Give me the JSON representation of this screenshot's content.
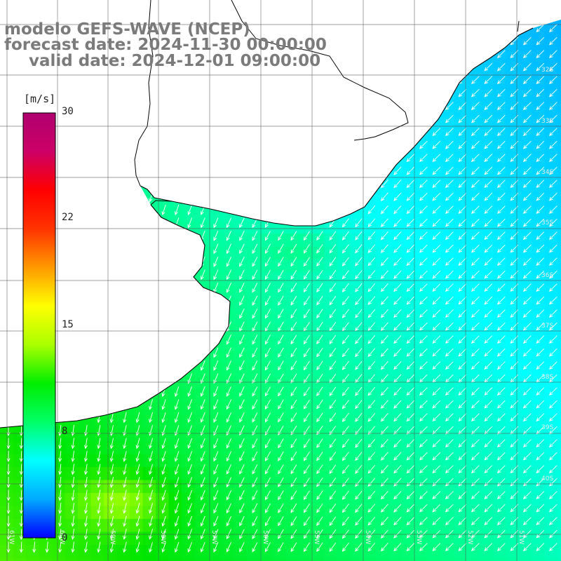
{
  "titles": {
    "model": "modelo GEFS-WAVE (NCEP)",
    "forecast": "forecast date: 2024-11-30 00:00:00",
    "valid": "valid date: 2024-12-01 09:00:00"
  },
  "colorbar": {
    "unit": "[m/s]",
    "min": 0,
    "max": 30,
    "ticks": [
      "30",
      "22",
      "15",
      "8",
      "0"
    ],
    "tick_values": [
      30,
      22,
      15,
      8,
      0
    ],
    "colors": [
      "#0000ff",
      "#00aaff",
      "#00ffff",
      "#00ff66",
      "#00ee00",
      "#aaff00",
      "#ffff00",
      "#ff9900",
      "#ff3300",
      "#ff0000",
      "#cc0066",
      "#b0006f"
    ]
  },
  "map": {
    "grid": true,
    "lat_labels": [
      "32S",
      "33S",
      "34S",
      "35S",
      "36S",
      "37S",
      "38S",
      "39S",
      "40S"
    ],
    "lon_labels": [
      "61W",
      "60W",
      "59W",
      "58W",
      "57W",
      "56W",
      "55W",
      "54W",
      "53W",
      "52W",
      "51W"
    ],
    "vector_field": "wind-arrows",
    "coastline_color": "#000000",
    "land_color": "#ffffff"
  }
}
